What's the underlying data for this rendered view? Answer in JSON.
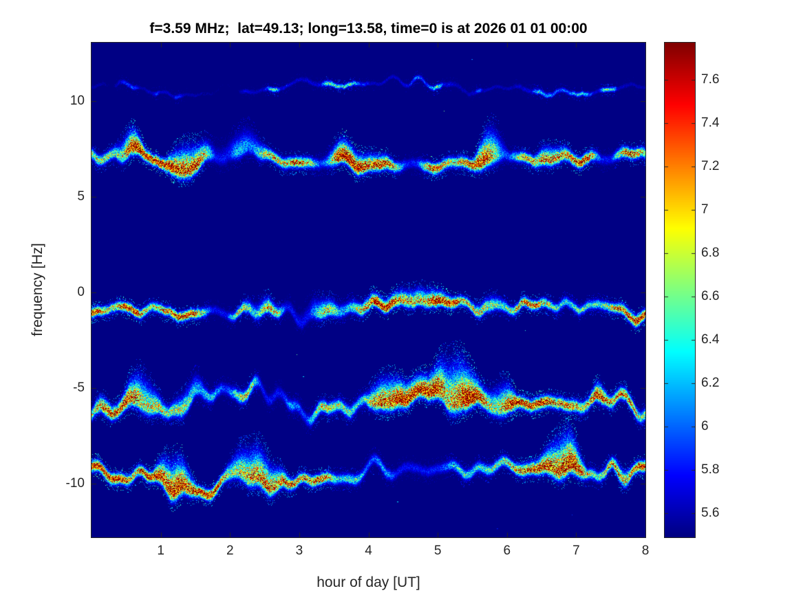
{
  "title": "f=3.59 MHz;  lat=49.13; long=13.58, time=0 is at 2026 01 01 00:00",
  "chart_data": {
    "type": "heatmap",
    "subtype": "doppler_spectrogram",
    "title": "f=3.59 MHz;  lat=49.13; long=13.58, time=0 is at 2026 01 01 00:00",
    "xlabel": "hour of day [UT]",
    "ylabel": "frequency [Hz]",
    "xlim": [
      0,
      8
    ],
    "ylim": [
      -12.8,
      13.05
    ],
    "grid": false,
    "colormap": "jet",
    "background_value": 5.5,
    "xticks": [
      {
        "value": 1,
        "label": "1"
      },
      {
        "value": 2,
        "label": "2"
      },
      {
        "value": 3,
        "label": "3"
      },
      {
        "value": 4,
        "label": "4"
      },
      {
        "value": 5,
        "label": "5"
      },
      {
        "value": 6,
        "label": "6"
      },
      {
        "value": 7,
        "label": "7"
      },
      {
        "value": 8,
        "label": "8"
      }
    ],
    "yticks": [
      {
        "value": 10,
        "label": "10"
      },
      {
        "value": 5,
        "label": "5"
      },
      {
        "value": 0,
        "label": "0"
      },
      {
        "value": -5,
        "label": "-5"
      },
      {
        "value": -10,
        "label": "-10"
      }
    ],
    "colorbar": {
      "position": "right",
      "range": [
        5.49,
        7.77
      ],
      "ticks": [
        {
          "value": 5.6,
          "label": "5.6"
        },
        {
          "value": 5.8,
          "label": "5.8"
        },
        {
          "value": 6.0,
          "label": "6"
        },
        {
          "value": 6.2,
          "label": "6.2"
        },
        {
          "value": 6.4,
          "label": "6.4"
        },
        {
          "value": 6.6,
          "label": "6.6"
        },
        {
          "value": 6.8,
          "label": "6.8"
        },
        {
          "value": 7.0,
          "label": "7"
        },
        {
          "value": 7.2,
          "label": "7.2"
        },
        {
          "value": 7.4,
          "label": "7.4"
        },
        {
          "value": 7.6,
          "label": "7.6"
        }
      ]
    },
    "series": [
      {
        "name": "doppler trace ~ +10.7 Hz",
        "center_hz": 10.7,
        "peak_value": 6.4,
        "sigma_hz": 0.07,
        "wander_hz": 0.6,
        "plume": 0.15,
        "patchy": true,
        "character": "faint patchy speckle line, occasional bright dots"
      },
      {
        "name": "doppler trace ~ +6.95 Hz",
        "center_hz": 6.95,
        "peak_value": 7.7,
        "sigma_hz": 0.16,
        "wander_hz": 0.7,
        "plume": 0.85,
        "patchy": false,
        "character": "strong continuous red-core trace with cyan fringe"
      },
      {
        "name": "doppler trace ~ -0.83 Hz",
        "center_hz": -0.83,
        "peak_value": 7.6,
        "sigma_hz": 0.14,
        "wander_hz": 0.8,
        "plume": 0.6,
        "patchy": false,
        "character": "strong trace, dips near 01:00 UT"
      },
      {
        "name": "doppler trace ~ -5.7 Hz",
        "center_hz": -5.7,
        "peak_value": 7.7,
        "sigma_hz": 0.18,
        "wander_hz": 1.0,
        "plume": 1.0,
        "patchy": false,
        "character": "strong trace, larger excursions and upward plumes"
      },
      {
        "name": "doppler trace ~ -9.5 Hz",
        "center_hz": -9.5,
        "peak_value": 7.7,
        "sigma_hz": 0.16,
        "wander_hz": 1.0,
        "plume": 0.9,
        "patchy": false,
        "character": "strong trace, dips to -10.2 Hz near 01:30 UT"
      }
    ]
  }
}
